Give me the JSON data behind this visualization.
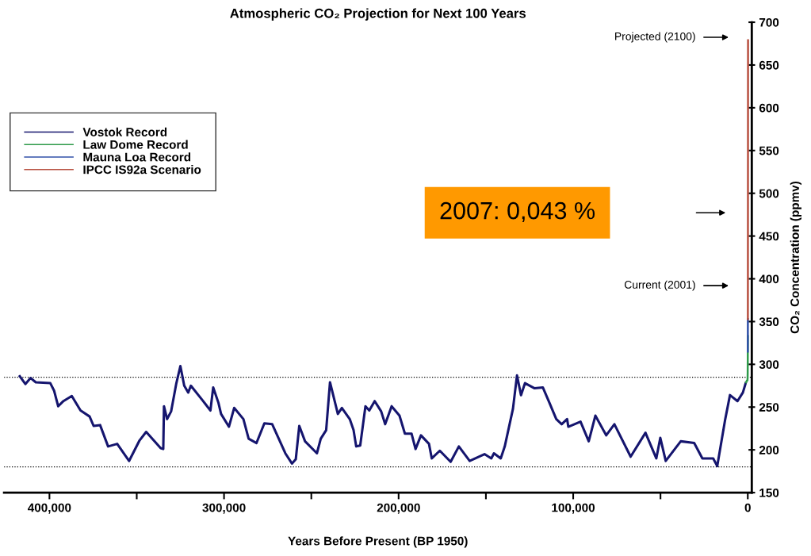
{
  "chart_data": {
    "type": "line",
    "title": "Atmospheric CO₂ Projection for Next 100 Years",
    "xlabel": "Years Before Present (BP 1950)",
    "ylabel": "CO₂ Concentration (ppmv)",
    "xlim": [
      426000,
      -2300
    ],
    "xticks": [
      {
        "value": 400000,
        "label": "400,000"
      },
      {
        "value": 350000,
        "label": null
      },
      {
        "value": 300000,
        "label": "300,000"
      },
      {
        "value": 250000,
        "label": null
      },
      {
        "value": 200000,
        "label": "200,000"
      },
      {
        "value": 150000,
        "label": null
      },
      {
        "value": 100000,
        "label": "100,000"
      },
      {
        "value": 50000,
        "label": null
      },
      0
    ],
    "ylim": [
      150,
      700
    ],
    "yticks": [
      150,
      200,
      250,
      300,
      350,
      400,
      450,
      500,
      550,
      600,
      650,
      700
    ],
    "grid": false,
    "legend": "top left",
    "line_style": "solid",
    "series": [
      {
        "name": "Vostok Record",
        "color": "#15156e",
        "x": [
          417000,
          413800,
          410800,
          407800,
          399500,
          397300,
          395000,
          392000,
          387200,
          382200,
          377000,
          374700,
          371000,
          366400,
          361200,
          354400,
          348400,
          344600,
          336300,
          334800,
          334400,
          332600,
          330300,
          327300,
          325000,
          322800,
          320500,
          319000,
          310800,
          307800,
          306200,
          303200,
          301700,
          297200,
          294200,
          288900,
          285900,
          281400,
          276900,
          272400,
          264900,
          261100,
          258900,
          256900,
          253600,
          246800,
          244600,
          241500,
          239300,
          234800,
          232500,
          228000,
          225800,
          224300,
          222000,
          219000,
          216800,
          213700,
          210000,
          207700,
          204000,
          199500,
          196400,
          192600,
          190300,
          187200,
          182600,
          181000,
          176400,
          170200,
          165500,
          159300,
          150800,
          146900,
          145400,
          141500,
          139200,
          134500,
          132200,
          129900,
          127600,
          122100,
          117400,
          113600,
          109700,
          106600,
          103500,
          102800,
          95800,
          91100,
          87300,
          81100,
          76400,
          67100,
          58600,
          52400,
          50100,
          47000,
          38400,
          30700,
          26000,
          19800,
          17500,
          12900,
          10200,
          5900,
          2800,
          1200
        ],
        "values": [
          286,
          277,
          284,
          279,
          278,
          269,
          251,
          257,
          263,
          246,
          239,
          228,
          229,
          204,
          207,
          187,
          211,
          221,
          202,
          201,
          251,
          236,
          245,
          278,
          298,
          275,
          267,
          275,
          254,
          246,
          273,
          255,
          242,
          227,
          249,
          236,
          213,
          208,
          231,
          230,
          196,
          184,
          189,
          228,
          210,
          196,
          213,
          223,
          279,
          242,
          249,
          236,
          223,
          204,
          205,
          251,
          246,
          257,
          245,
          230,
          251,
          240,
          219,
          219,
          201,
          217,
          207,
          190,
          199,
          186,
          204,
          187,
          195,
          190,
          196,
          190,
          204,
          248,
          287,
          264,
          278,
          272,
          273,
          255,
          236,
          230,
          236,
          227,
          233,
          210,
          240,
          217,
          230,
          192,
          220,
          190,
          214,
          187,
          210,
          208,
          190,
          190,
          181,
          236,
          264,
          257,
          267,
          278
        ]
      },
      {
        "name": "Law Dome Record",
        "color": "#2e9a4a",
        "x": [
          1000,
          500,
          200,
          100,
          50,
          0,
          -28
        ],
        "values": [
          279,
          281,
          281,
          284,
          290,
          311,
          333
        ]
      },
      {
        "name": "Mauna Loa Record",
        "color": "#3050a8",
        "x": [
          -8,
          -30,
          -51
        ],
        "values": [
          315,
          330,
          353
        ]
      },
      {
        "name": "IPCC IS92a Scenario",
        "color": "#b85040",
        "x": [
          -51,
          -75,
          -100,
          -125,
          -150
        ],
        "values": [
          353,
          420,
          500,
          580,
          679
        ]
      }
    ],
    "ref_lines": [
      {
        "axis": "y",
        "value": 285,
        "color": "#000000",
        "line_style": "dotted"
      },
      {
        "axis": "y",
        "value": 180,
        "color": "#000000",
        "line_style": "dotted"
      }
    ],
    "annotations": [
      "Projected (2100)",
      "Current (2001)",
      "2007: 0,043 %"
    ]
  }
}
